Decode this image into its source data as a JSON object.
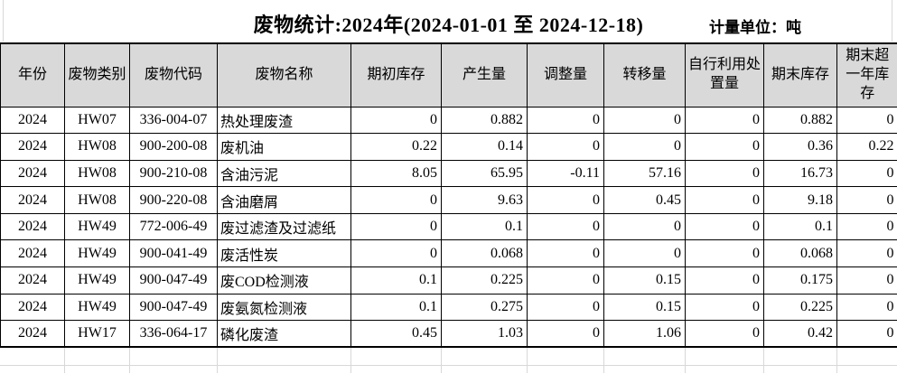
{
  "title": "废物统计:2024年(2024-01-01 至 2024-12-18)",
  "unit_label": "计量单位：吨",
  "colors": {
    "header_bg": "#d9d9d9",
    "border": "#000000",
    "gridline": "#d8d8d8"
  },
  "table": {
    "headers": [
      "年份",
      "废物类别",
      "废物代码",
      "废物名称",
      "期初库存",
      "产生量",
      "调整量",
      "转移量",
      "自行利用处置量",
      "期末库存",
      "期末超一年库存"
    ],
    "rows": [
      [
        "2024",
        "HW07",
        "336-004-07",
        "热处理废渣",
        "0",
        "0.882",
        "0",
        "0",
        "0",
        "0.882",
        "0"
      ],
      [
        "2024",
        "HW08",
        "900-200-08",
        "废机油",
        "0.22",
        "0.14",
        "0",
        "0",
        "0",
        "0.36",
        "0.22"
      ],
      [
        "2024",
        "HW08",
        "900-210-08",
        "含油污泥",
        "8.05",
        "65.95",
        "-0.11",
        "57.16",
        "0",
        "16.73",
        "0"
      ],
      [
        "2024",
        "HW08",
        "900-220-08",
        "含油磨屑",
        "0",
        "9.63",
        "0",
        "0.45",
        "0",
        "9.18",
        "0"
      ],
      [
        "2024",
        "HW49",
        "772-006-49",
        "废过滤渣及过滤纸",
        "0",
        "0.1",
        "0",
        "0",
        "0",
        "0.1",
        "0"
      ],
      [
        "2024",
        "HW49",
        "900-041-49",
        "废活性炭",
        "0",
        "0.068",
        "0",
        "0",
        "0",
        "0.068",
        "0"
      ],
      [
        "2024",
        "HW49",
        "900-047-49",
        "废COD检测液",
        "0.1",
        "0.225",
        "0",
        "0.15",
        "0",
        "0.175",
        "0"
      ],
      [
        "2024",
        "HW49",
        "900-047-49",
        "废氨氮检测液",
        "0.1",
        "0.275",
        "0",
        "0.15",
        "0",
        "0.225",
        "0"
      ],
      [
        "2024",
        "HW17",
        "336-064-17",
        "磷化废渣",
        "0.45",
        "1.03",
        "0",
        "1.06",
        "0",
        "0.42",
        "0"
      ]
    ]
  }
}
